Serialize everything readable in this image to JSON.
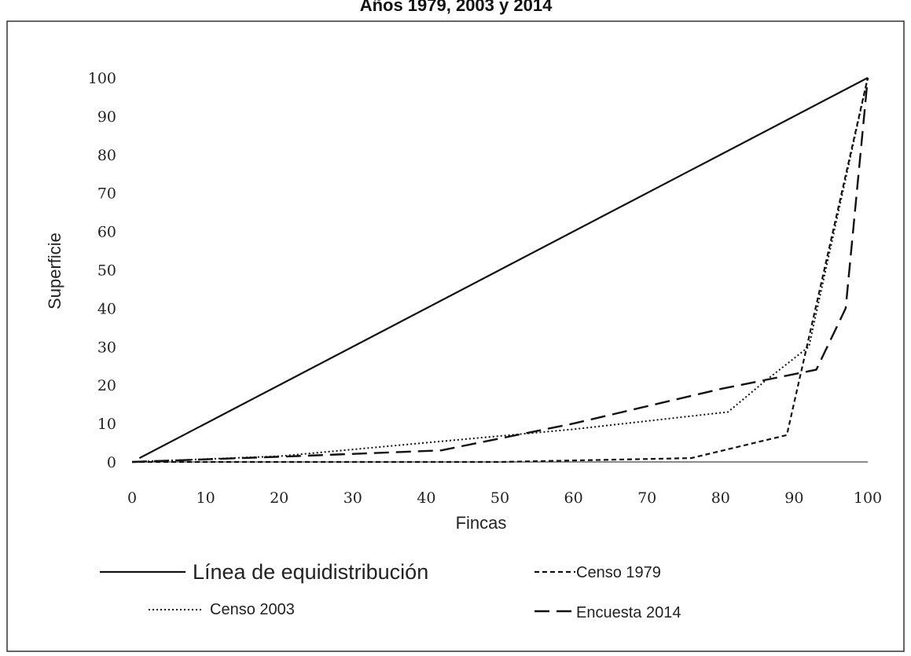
{
  "chart_data": {
    "type": "line",
    "title": "Años 1979, 2003 y 2014",
    "xlabel": "Fincas",
    "ylabel": "Superficie",
    "xlim": [
      0,
      100
    ],
    "ylim": [
      0,
      100
    ],
    "x_ticks": [
      "0",
      "10",
      "20",
      "30",
      "40",
      "50",
      "60",
      "70",
      "80",
      "90",
      "100"
    ],
    "y_ticks": [
      "0",
      "10",
      "20",
      "30",
      "40",
      "50",
      "60",
      "70",
      "80",
      "90",
      "100"
    ],
    "grid": false,
    "legend_position": "bottom",
    "series": [
      {
        "name": "Línea de equidistribución",
        "style": "solid",
        "color": "#111111",
        "points": [
          [
            1,
            1
          ],
          [
            100,
            100
          ]
        ]
      },
      {
        "name": "Censo 1979",
        "style": "short-dash",
        "color": "#111111",
        "points": [
          [
            0,
            0
          ],
          [
            20,
            0
          ],
          [
            50,
            0
          ],
          [
            76,
            1
          ],
          [
            89,
            7
          ],
          [
            100,
            100
          ]
        ]
      },
      {
        "name": "Censo 2003",
        "style": "dotted",
        "color": "#111111",
        "points": [
          [
            0,
            0
          ],
          [
            20,
            1.5
          ],
          [
            40,
            5
          ],
          [
            60,
            8.5
          ],
          [
            81,
            13
          ],
          [
            86,
            21
          ],
          [
            92,
            30
          ],
          [
            100,
            100
          ]
        ]
      },
      {
        "name": "Encuesta 2014",
        "style": "long-dash",
        "color": "#111111",
        "points": [
          [
            0,
            0
          ],
          [
            22,
            1.5
          ],
          [
            42,
            3
          ],
          [
            60,
            10
          ],
          [
            80,
            19
          ],
          [
            93,
            24
          ],
          [
            97,
            40
          ],
          [
            100,
            100
          ]
        ]
      }
    ]
  }
}
